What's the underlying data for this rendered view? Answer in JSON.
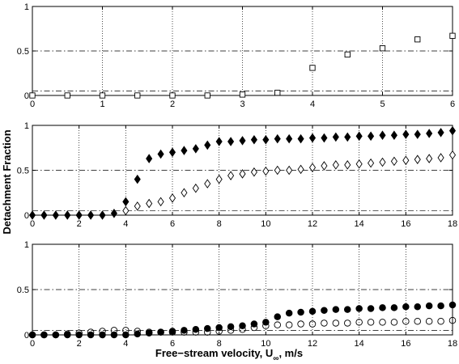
{
  "figure": {
    "ylabel": "Detachment Fraction",
    "xlabel_main": "Free−stream velocity, U",
    "xlabel_sub": "∞",
    "xlabel_tail": ", m/s"
  },
  "chart_data": [
    {
      "type": "scatter",
      "panel": "top",
      "xlim": [
        0,
        6
      ],
      "ylim": [
        0,
        1
      ],
      "xticks": [
        0,
        1,
        2,
        3,
        4,
        5,
        6
      ],
      "xtick_labels": [
        "0",
        "1",
        "2",
        "3",
        "4",
        "5",
        "6"
      ],
      "yticks": [
        0,
        0.5,
        1
      ],
      "ytick_labels": [
        "0",
        "0.5",
        "1"
      ],
      "grid": "x-dotted",
      "ref_lines": [
        0.5,
        0.05
      ],
      "series": [
        {
          "marker": "square-open",
          "x": [
            0,
            0.5,
            1,
            1.5,
            2,
            2.5,
            3,
            3.5,
            4,
            4.5,
            5,
            5.5,
            6
          ],
          "y": [
            0.0,
            0.0,
            0.0,
            0.0,
            0.0,
            0.0,
            0.01,
            0.03,
            0.31,
            0.46,
            0.53,
            0.63,
            0.67
          ]
        }
      ]
    },
    {
      "type": "scatter",
      "panel": "middle",
      "xlim": [
        0,
        18
      ],
      "ylim": [
        0,
        1
      ],
      "xticks": [
        0,
        2,
        4,
        6,
        8,
        10,
        12,
        14,
        16,
        18
      ],
      "xtick_labels": [
        "0",
        "2",
        "4",
        "6",
        "8",
        "10",
        "12",
        "14",
        "16",
        "18"
      ],
      "yticks": [
        0,
        0.5,
        1
      ],
      "ytick_labels": [
        "0",
        "0.5",
        "1"
      ],
      "grid": "x-dotted",
      "ref_lines": [
        0.5,
        0.05
      ],
      "series": [
        {
          "marker": "diamond-filled",
          "x": [
            0,
            0.5,
            1,
            1.5,
            2,
            2.5,
            3,
            3.5,
            4,
            4.5,
            5,
            5.5,
            6,
            6.5,
            7,
            7.5,
            8,
            8.5,
            9,
            9.5,
            10,
            10.5,
            11,
            11.5,
            12,
            12.5,
            13,
            13.5,
            14,
            14.5,
            15,
            15.5,
            16,
            16.5,
            17,
            17.5,
            18
          ],
          "y": [
            0.0,
            0.0,
            0.0,
            0.0,
            0.0,
            0.0,
            0.0,
            0.02,
            0.15,
            0.4,
            0.63,
            0.68,
            0.7,
            0.72,
            0.74,
            0.78,
            0.82,
            0.82,
            0.83,
            0.84,
            0.84,
            0.85,
            0.85,
            0.85,
            0.86,
            0.86,
            0.87,
            0.87,
            0.88,
            0.88,
            0.89,
            0.89,
            0.9,
            0.9,
            0.91,
            0.92,
            0.94
          ]
        },
        {
          "marker": "diamond-open",
          "x": [
            4,
            4.5,
            5,
            5.5,
            6,
            6.5,
            7,
            7.5,
            8,
            8.5,
            9,
            9.5,
            10,
            10.5,
            11,
            11.5,
            12,
            12.5,
            13,
            13.5,
            14,
            14.5,
            15,
            15.5,
            16,
            16.5,
            17,
            17.5,
            18
          ],
          "y": [
            0.05,
            0.1,
            0.13,
            0.15,
            0.19,
            0.25,
            0.3,
            0.35,
            0.4,
            0.44,
            0.46,
            0.48,
            0.49,
            0.5,
            0.5,
            0.51,
            0.53,
            0.55,
            0.56,
            0.56,
            0.57,
            0.58,
            0.59,
            0.6,
            0.61,
            0.62,
            0.63,
            0.64,
            0.67
          ]
        }
      ]
    },
    {
      "type": "scatter",
      "panel": "bottom",
      "xlim": [
        0,
        18
      ],
      "ylim": [
        0,
        1
      ],
      "xticks": [
        0,
        2,
        4,
        6,
        8,
        10,
        12,
        14,
        16,
        18
      ],
      "xtick_labels": [
        "0",
        "2",
        "4",
        "6",
        "8",
        "10",
        "12",
        "14",
        "16",
        "18"
      ],
      "yticks": [
        0,
        0.5,
        1
      ],
      "ytick_labels": [
        "0",
        "0.5",
        "1"
      ],
      "grid": "x-dotted",
      "ref_lines": [
        0.5,
        0.05
      ],
      "series": [
        {
          "marker": "circle-filled",
          "x": [
            0,
            0.5,
            1,
            1.5,
            2,
            2.5,
            3,
            3.5,
            4,
            4.5,
            5,
            5.5,
            6,
            6.5,
            7,
            7.5,
            8,
            8.5,
            9,
            9.5,
            10,
            10.5,
            11,
            11.5,
            12,
            12.5,
            13,
            13.5,
            14,
            14.5,
            15,
            15.5,
            16,
            16.5,
            17,
            17.5,
            18
          ],
          "y": [
            0.0,
            0.0,
            0.0,
            0.0,
            0.0,
            0.0,
            0.0,
            0.0,
            0.0,
            0.01,
            0.02,
            0.03,
            0.04,
            0.05,
            0.06,
            0.07,
            0.08,
            0.09,
            0.1,
            0.12,
            0.14,
            0.2,
            0.24,
            0.25,
            0.26,
            0.27,
            0.28,
            0.28,
            0.29,
            0.29,
            0.3,
            0.3,
            0.31,
            0.31,
            0.32,
            0.32,
            0.33
          ]
        },
        {
          "marker": "circle-open",
          "x": [
            0,
            0.5,
            1,
            1.5,
            2,
            2.5,
            3,
            3.5,
            4,
            4.5,
            5,
            5.5,
            6,
            6.5,
            7,
            7.5,
            8,
            8.5,
            9,
            9.5,
            10,
            10.5,
            11,
            11.5,
            12,
            12.5,
            13,
            13.5,
            14,
            14.5,
            15,
            15.5,
            16,
            16.5,
            17,
            17.5,
            18
          ],
          "y": [
            0.0,
            0.0,
            0.0,
            0.01,
            0.02,
            0.03,
            0.04,
            0.05,
            0.05,
            0.04,
            0.03,
            0.03,
            0.03,
            0.03,
            0.03,
            0.03,
            0.04,
            0.05,
            0.06,
            0.08,
            0.1,
            0.11,
            0.11,
            0.12,
            0.12,
            0.13,
            0.13,
            0.13,
            0.14,
            0.14,
            0.14,
            0.14,
            0.15,
            0.15,
            0.15,
            0.15,
            0.16
          ]
        }
      ]
    }
  ]
}
